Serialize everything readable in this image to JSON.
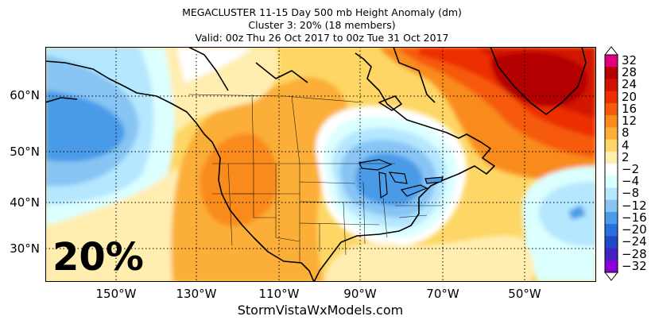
{
  "title": {
    "line1": "MEGACLUSTER 11-15 Day 500 mb Height Anomaly (dm)",
    "line2": "Cluster 3: 20% (18 members)",
    "line3": "Valid: 00z Thu 26 Oct 2017 to 00z Tue 31 Oct 2017"
  },
  "map": {
    "lat_labels": [
      "60°N",
      "50°N",
      "40°N",
      "30°N"
    ],
    "lon_labels": [
      "150°W",
      "130°W",
      "110°W",
      "90°W",
      "70°W",
      "50°W"
    ],
    "cluster_percent": "20%",
    "credit": "StormVistaWxModels.com"
  },
  "colorbar": {
    "labels": [
      "32",
      "28",
      "24",
      "20",
      "16",
      "12",
      "8",
      "4",
      "2",
      "−2",
      "−4",
      "−8",
      "−12",
      "−16",
      "−20",
      "−24",
      "−28",
      "−32"
    ],
    "colors": [
      "#e0007e",
      "#b40000",
      "#d21200",
      "#ec2e00",
      "#f65a0a",
      "#f98b1a",
      "#fbae38",
      "#fdd666",
      "#ffeeb0",
      "#ffffff",
      "#dcffff",
      "#b5e7ff",
      "#88c4f4",
      "#4a9be8",
      "#2a6fdb",
      "#1f49c8",
      "#4520c4",
      "#8a00d6"
    ]
  },
  "colors": {
    "land_outline": "#000000",
    "grid": "#000000"
  }
}
